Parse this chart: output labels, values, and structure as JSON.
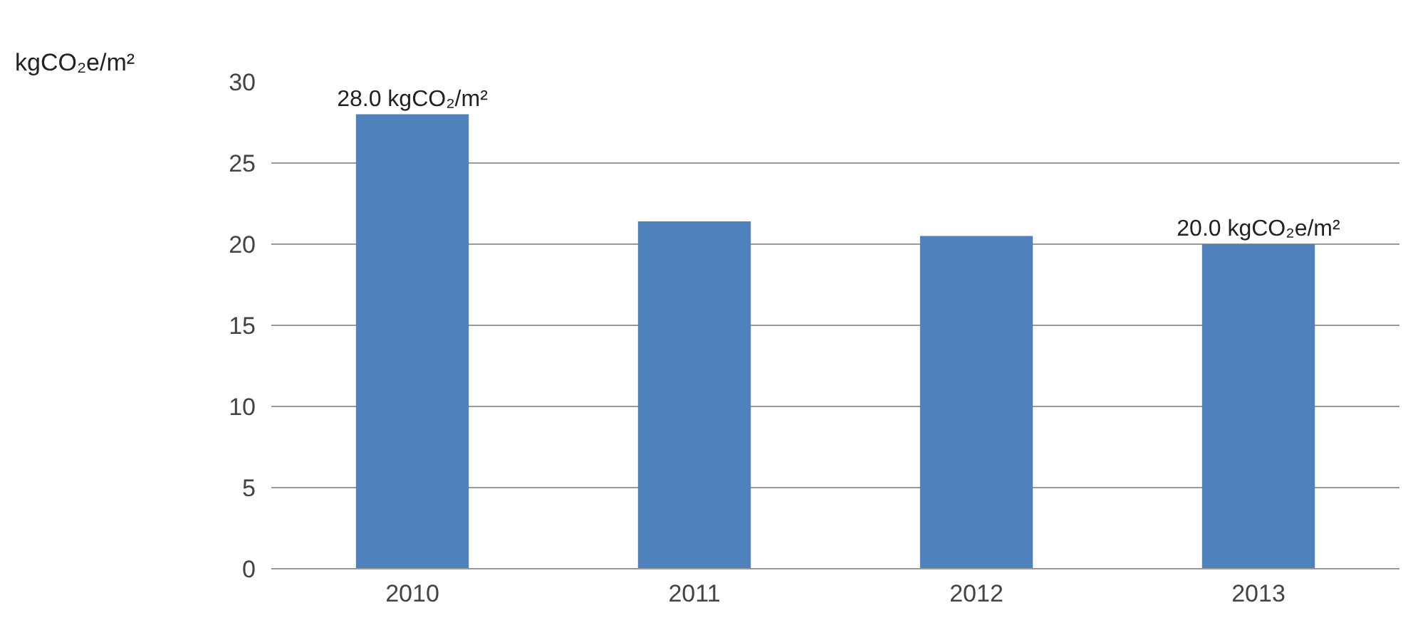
{
  "chart_data": {
    "type": "bar",
    "ylabel": "kgCO₂e/m²",
    "categories": [
      "2010",
      "2011",
      "2012",
      "2013"
    ],
    "values": [
      28.0,
      21.4,
      20.5,
      20.0
    ],
    "value_labels": [
      "28.0 kgCO₂/m²",
      null,
      null,
      "20.0 kgCO₂e/m²"
    ],
    "color": "#4f81bd",
    "ylim": [
      0,
      30
    ],
    "yticks": [
      0,
      5,
      10,
      15,
      20,
      25,
      30
    ],
    "grid": "y"
  }
}
